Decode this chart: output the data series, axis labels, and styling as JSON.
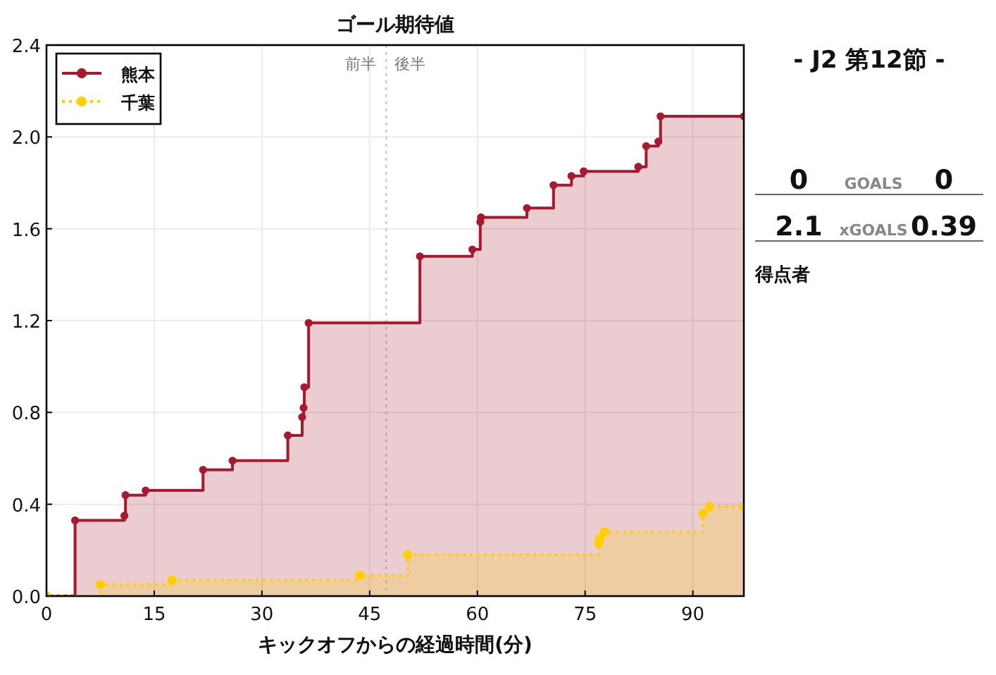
{
  "chart_data": [
    {
      "type": "step",
      "title": "ゴール期待値",
      "xlabel": "キックオフからの経過時間(分)",
      "series": [
        {
          "name": "熊本",
          "color": "#a6192e",
          "line_style": "solid",
          "x": [
            0,
            3.98,
            10.85,
            11.0,
            13.8,
            21.8,
            25.9,
            33.6,
            35.6,
            35.8,
            35.9,
            36.5,
            52.0,
            59.3,
            60.4,
            60.5,
            66.9,
            70.6,
            73.1,
            74.8,
            82.4,
            83.5,
            85.2,
            85.5,
            97.1
          ],
          "values": [
            0,
            0.33,
            0.35,
            0.44,
            0.46,
            0.55,
            0.59,
            0.7,
            0.78,
            0.82,
            0.91,
            1.19,
            1.48,
            1.51,
            1.63,
            1.65,
            1.69,
            1.79,
            1.83,
            1.85,
            1.87,
            1.96,
            1.98,
            2.09,
            2.09
          ]
        },
        {
          "name": "千葉",
          "color": "#ffd000",
          "line_style": "dotted",
          "x": [
            0,
            7.5,
            17.5,
            43.6,
            50.3,
            76.9,
            77.0,
            77.7,
            91.4,
            92.3,
            97.1
          ],
          "values": [
            0,
            0.05,
            0.07,
            0.09,
            0.18,
            0.23,
            0.25,
            0.28,
            0.36,
            0.39,
            0.39
          ]
        }
      ],
      "xlim": [
        0,
        97.1
      ],
      "ylim": [
        0,
        2.4
      ],
      "xticks": [
        0,
        15,
        30,
        45,
        60,
        75,
        90
      ],
      "yticks": [
        {
          "value": 0,
          "label": "0.0"
        },
        {
          "value": 0.4,
          "label": "0.4"
        },
        {
          "value": 0.8,
          "label": "0.8"
        },
        {
          "value": 1.2,
          "label": "1.2"
        },
        {
          "value": 1.6,
          "label": "1.6"
        },
        {
          "value": 2.0,
          "label": "2.0"
        },
        {
          "value": 2.4,
          "label": "2.4"
        }
      ],
      "grid": true,
      "legend": "top left",
      "marker": "circle",
      "ref_lines": [
        {
          "axis": "x",
          "value": 47.3,
          "label": "前半",
          "color": "#c8c8c8",
          "line_style": "dotted"
        }
      ],
      "annotations": [
        "後半"
      ]
    },
    {
      "type": "other",
      "title": "- J2 第12節 -",
      "annotations": [
        "0",
        "GOALS",
        "0",
        "2.1",
        "xGOALS",
        "0.39",
        "得点者"
      ]
    }
  ]
}
